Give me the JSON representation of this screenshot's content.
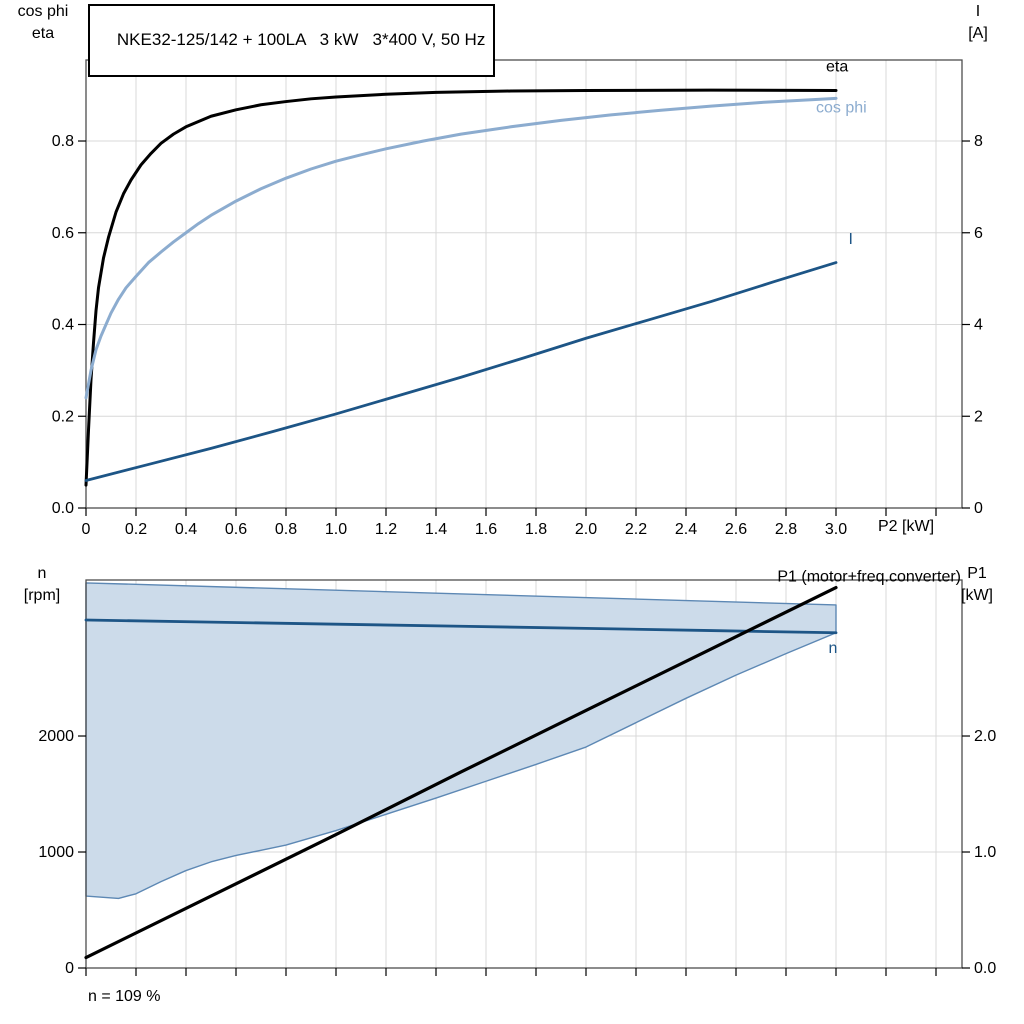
{
  "colors": {
    "black_curve": "#000000",
    "dark_blue": "#1d5586",
    "light_blue": "#8caccf",
    "envelope_fill": "#ccdbea",
    "envelope_stroke": "#5d88b4",
    "grid": "#d8d8d8",
    "frame": "#4d4d4d"
  },
  "chart_data": [
    {
      "id": "motor-performance",
      "type": "line",
      "title": "NKE32-125/142 + 100LA   3 kW   3*400 V, 50 Hz",
      "x_axis": {
        "label": "P2 [kW]",
        "range": [
          0,
          3.504
        ],
        "ticks": [
          0,
          0.2,
          0.4,
          0.6,
          0.8,
          1,
          1.2,
          1.4,
          1.6,
          1.8,
          2,
          2.2,
          2.4,
          2.6,
          2.8,
          3,
          3.2,
          3.4
        ],
        "tick_labels": [
          "0",
          "0.2",
          "0.4",
          "0.6",
          "0.8",
          "1.0",
          "1.2",
          "1.4",
          "1.6",
          "1.8",
          "2.0",
          "2.2",
          "2.4",
          "2.6",
          "2.8",
          "3.0",
          "",
          ""
        ]
      },
      "left_axis": {
        "label_lines": [
          "cos phi",
          "eta"
        ],
        "range": [
          0,
          0.9766
        ],
        "ticks": [
          0,
          0.2,
          0.4,
          0.6,
          0.8
        ],
        "tick_labels": [
          "0.0",
          "0.2",
          "0.4",
          "0.6",
          "0.8"
        ]
      },
      "right_axis": {
        "label_lines": [
          "I",
          "[A]"
        ],
        "range": [
          0,
          9.766
        ],
        "ticks": [
          0,
          2,
          4,
          6,
          8
        ],
        "tick_labels": [
          "0",
          "2",
          "4",
          "6",
          "8"
        ]
      },
      "grid": true,
      "series": [
        {
          "name": "eta",
          "axis": "left",
          "color": "#000000",
          "width": 3,
          "label": "eta",
          "label_color": "#000000",
          "label_at": {
            "x": 2.96,
            "y": 0.952,
            "anchor": "start"
          },
          "points": [
            [
              0,
              0.05
            ],
            [
              0.01,
              0.17
            ],
            [
              0.02,
              0.28
            ],
            [
              0.03,
              0.36
            ],
            [
              0.04,
              0.43
            ],
            [
              0.05,
              0.48
            ],
            [
              0.07,
              0.545
            ],
            [
              0.09,
              0.59
            ],
            [
              0.12,
              0.645
            ],
            [
              0.15,
              0.685
            ],
            [
              0.18,
              0.715
            ],
            [
              0.22,
              0.748
            ],
            [
              0.26,
              0.773
            ],
            [
              0.3,
              0.795
            ],
            [
              0.35,
              0.815
            ],
            [
              0.4,
              0.831
            ],
            [
              0.5,
              0.854
            ],
            [
              0.6,
              0.868
            ],
            [
              0.7,
              0.879
            ],
            [
              0.8,
              0.886
            ],
            [
              0.9,
              0.892
            ],
            [
              1,
              0.896
            ],
            [
              1.2,
              0.902
            ],
            [
              1.4,
              0.906
            ],
            [
              1.7,
              0.909
            ],
            [
              2,
              0.91
            ],
            [
              2.5,
              0.911
            ],
            [
              3,
              0.91
            ]
          ]
        },
        {
          "name": "cos_phi",
          "axis": "left",
          "color": "#8caccf",
          "width": 3,
          "label": "cos phi",
          "label_color": "#8caccf",
          "label_at": {
            "x": 2.92,
            "y": 0.862,
            "anchor": "start"
          },
          "points": [
            [
              0,
              0.24
            ],
            [
              0.02,
              0.3
            ],
            [
              0.04,
              0.345
            ],
            [
              0.06,
              0.375
            ],
            [
              0.08,
              0.4
            ],
            [
              0.1,
              0.425
            ],
            [
              0.13,
              0.455
            ],
            [
              0.16,
              0.48
            ],
            [
              0.2,
              0.505
            ],
            [
              0.25,
              0.535
            ],
            [
              0.3,
              0.558
            ],
            [
              0.35,
              0.58
            ],
            [
              0.4,
              0.6
            ],
            [
              0.45,
              0.62
            ],
            [
              0.5,
              0.638
            ],
            [
              0.6,
              0.669
            ],
            [
              0.7,
              0.696
            ],
            [
              0.8,
              0.719
            ],
            [
              0.9,
              0.739
            ],
            [
              1,
              0.756
            ],
            [
              1.1,
              0.77
            ],
            [
              1.2,
              0.783
            ],
            [
              1.35,
              0.8
            ],
            [
              1.5,
              0.815
            ],
            [
              1.7,
              0.831
            ],
            [
              1.9,
              0.845
            ],
            [
              2.1,
              0.857
            ],
            [
              2.3,
              0.867
            ],
            [
              2.5,
              0.876
            ],
            [
              2.7,
              0.884
            ],
            [
              2.9,
              0.89
            ],
            [
              3,
              0.893
            ]
          ]
        },
        {
          "name": "I",
          "axis": "right",
          "color": "#1d5586",
          "width": 2.8,
          "label": "I",
          "label_color": "#1d5586",
          "label_at": {
            "x": 3.05,
            "y": 5.75,
            "anchor": "start"
          },
          "points": [
            [
              0,
              0.6
            ],
            [
              0.25,
              0.95
            ],
            [
              0.5,
              1.3
            ],
            [
              0.75,
              1.67
            ],
            [
              1,
              2.05
            ],
            [
              1.25,
              2.45
            ],
            [
              1.5,
              2.85
            ],
            [
              1.75,
              3.27
            ],
            [
              2,
              3.7
            ],
            [
              2.25,
              4.1
            ],
            [
              2.5,
              4.5
            ],
            [
              2.75,
              4.93
            ],
            [
              3,
              5.35
            ]
          ]
        }
      ]
    },
    {
      "id": "speed-and-power",
      "type": "line",
      "footnote": "n = 109 %",
      "x_axis": {
        "label": "",
        "range": [
          0,
          3.504
        ],
        "ticks": [
          0,
          0.2,
          0.4,
          0.6,
          0.8,
          1,
          1.2,
          1.4,
          1.6,
          1.8,
          2,
          2.2,
          2.4,
          2.6,
          2.8,
          3,
          3.2,
          3.4
        ],
        "tick_labels": [
          "",
          "",
          "",
          "",
          "",
          "",
          "",
          "",
          "",
          "",
          "",
          "",
          "",
          "",
          "",
          "",
          "",
          ""
        ]
      },
      "left_axis": {
        "label_lines": [
          "n",
          "[rpm]"
        ],
        "range": [
          0,
          3345
        ],
        "ticks": [
          0,
          1000,
          2000
        ],
        "tick_labels": [
          "0",
          "1000",
          "2000"
        ]
      },
      "right_axis": {
        "label_lines": [
          "P1",
          "[kW]"
        ],
        "range": [
          0,
          3.345
        ],
        "ticks": [
          0,
          1,
          2
        ],
        "tick_labels": [
          "0.0",
          "1.0",
          "2.0"
        ]
      },
      "grid": true,
      "envelope": {
        "name": "speed-range-envelope",
        "fill": "#ccdbea",
        "stroke": "#5d88b4",
        "width": 1.4,
        "upper": [
          [
            0,
            3320
          ],
          [
            3,
            3130
          ]
        ],
        "lower": [
          [
            0,
            620
          ],
          [
            0.13,
            600
          ],
          [
            0.2,
            640
          ],
          [
            0.3,
            745
          ],
          [
            0.4,
            840
          ],
          [
            0.5,
            915
          ],
          [
            0.6,
            970
          ],
          [
            0.7,
            1015
          ],
          [
            0.8,
            1060
          ],
          [
            1,
            1185
          ],
          [
            1.2,
            1325
          ],
          [
            1.4,
            1465
          ],
          [
            1.6,
            1610
          ],
          [
            1.8,
            1755
          ],
          [
            2,
            1905
          ],
          [
            2.2,
            2115
          ],
          [
            2.4,
            2325
          ],
          [
            2.6,
            2525
          ],
          [
            2.8,
            2710
          ],
          [
            3,
            2890
          ]
        ]
      },
      "series": [
        {
          "name": "n",
          "axis": "left",
          "color": "#1d5586",
          "width": 2.8,
          "label": "n",
          "label_color": "#1d5586",
          "label_at": {
            "x": 2.97,
            "y": 2715,
            "anchor": "start"
          },
          "points": [
            [
              0,
              3000
            ],
            [
              0.5,
              2982
            ],
            [
              1,
              2964
            ],
            [
              1.5,
              2946
            ],
            [
              2,
              2928
            ],
            [
              2.5,
              2909
            ],
            [
              3,
              2890
            ]
          ]
        },
        {
          "name": "P1",
          "axis": "right",
          "color": "#000000",
          "width": 3.2,
          "label": "P1 (motor+freq.converter)",
          "label_color": "#000000",
          "label_at": {
            "x": 3.5,
            "y": 3.33,
            "anchor": "end"
          },
          "points": [
            [
              0,
              0.09
            ],
            [
              0.5,
              0.62
            ],
            [
              1,
              1.15
            ],
            [
              1.5,
              1.69
            ],
            [
              2,
              2.22
            ],
            [
              2.5,
              2.75
            ],
            [
              3,
              3.28
            ]
          ]
        }
      ]
    }
  ]
}
